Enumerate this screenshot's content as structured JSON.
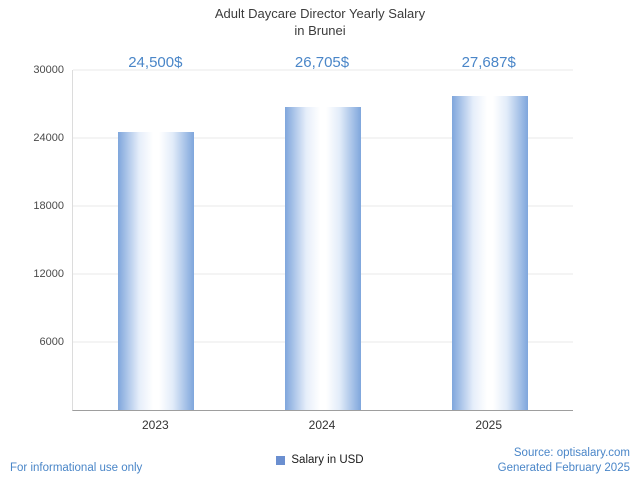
{
  "chart_data": {
    "type": "bar",
    "title": "Adult Daycare Director Yearly Salary in Brunei",
    "title_line1": "Adult Daycare Director Yearly Salary",
    "title_line2": "in Brunei",
    "categories": [
      "2023",
      "2024",
      "2025"
    ],
    "values": [
      24500,
      26705,
      27687
    ],
    "value_labels": [
      "24,500$",
      "26,705$",
      "27,687$"
    ],
    "ylim": [
      0,
      30000
    ],
    "yticks": [
      6000,
      12000,
      18000,
      24000,
      30000
    ],
    "grid": true,
    "legend_position": "bottom",
    "legend": "Salary in USD",
    "xlabel": "",
    "ylabel": "",
    "bar_color": "#7fa6dc",
    "accent_color": "#4a86c8",
    "legend_swatch_color": "#6b8fd0"
  },
  "footer": {
    "left": "For informational use only",
    "source": "Source: optisalary.com",
    "generated": "Generated February 2025"
  }
}
